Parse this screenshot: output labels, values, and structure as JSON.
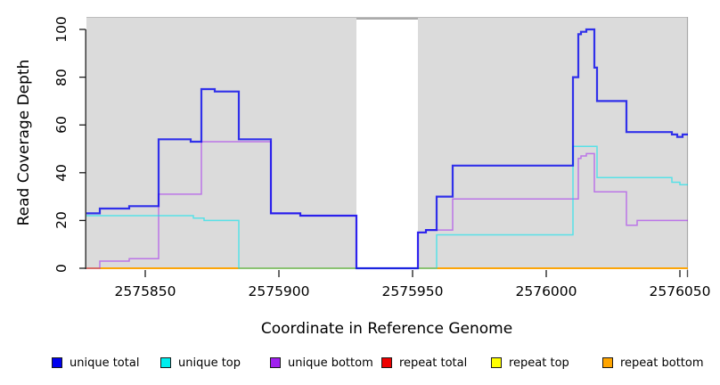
{
  "chart_data": {
    "type": "line",
    "subtype": "step-coverage",
    "title": "",
    "xlabel": "Coordinate in Reference Genome",
    "ylabel": "Read Coverage Depth",
    "xlim": [
      2575828,
      2576053
    ],
    "ylim": [
      0,
      100
    ],
    "x_ticks": [
      2575850,
      2575900,
      2575950,
      2576000,
      2576050
    ],
    "y_ticks": [
      0,
      20,
      40,
      60,
      80,
      100
    ],
    "grid": false,
    "legend_position": "bottom",
    "plot_bg": "#dbdbdb",
    "gap_region": {
      "x_start": 2575929,
      "x_end": 2575952,
      "color": "#ffffff",
      "top_border": "#8f8f8f"
    },
    "draw_order": [
      3,
      4,
      5,
      2,
      1,
      0
    ],
    "series": [
      {
        "name": "unique total",
        "swatch_color": "#0000ee",
        "line_color": "#0000ee",
        "line_alpha": 0.78,
        "line_width": 2.2,
        "steps": [
          [
            2575828,
            23
          ],
          [
            2575833,
            25
          ],
          [
            2575844,
            26
          ],
          [
            2575855,
            54
          ],
          [
            2575867,
            53
          ],
          [
            2575871,
            75
          ],
          [
            2575876,
            74
          ],
          [
            2575885,
            54
          ],
          [
            2575897,
            23
          ],
          [
            2575908,
            22
          ],
          [
            2575929,
            0
          ],
          [
            2575952,
            15
          ],
          [
            2575955,
            16
          ],
          [
            2575959,
            30
          ],
          [
            2575965,
            43
          ],
          [
            2576010,
            80
          ],
          [
            2576012,
            98
          ],
          [
            2576013,
            99
          ],
          [
            2576015,
            100
          ],
          [
            2576018,
            84
          ],
          [
            2576019,
            70
          ],
          [
            2576030,
            57
          ],
          [
            2576047,
            56
          ],
          [
            2576049,
            55
          ],
          [
            2576051,
            56
          ],
          [
            2576053,
            56
          ]
        ]
      },
      {
        "name": "unique top",
        "swatch_color": "#00eeee",
        "line_color": "#00e5ee",
        "line_alpha": 0.6,
        "line_width": 1.5,
        "steps": [
          [
            2575828,
            22
          ],
          [
            2575868,
            21
          ],
          [
            2575872,
            20
          ],
          [
            2575885,
            0
          ],
          [
            2575959,
            14
          ],
          [
            2576010,
            51
          ],
          [
            2576019,
            38
          ],
          [
            2576047,
            36
          ],
          [
            2576050,
            35
          ],
          [
            2576053,
            35
          ]
        ]
      },
      {
        "name": "unique bottom",
        "swatch_color": "#a020f0",
        "line_color": "#a020f0",
        "line_alpha": 0.55,
        "line_width": 1.5,
        "steps": [
          [
            2575828,
            0
          ],
          [
            2575833,
            3
          ],
          [
            2575844,
            4
          ],
          [
            2575855,
            31
          ],
          [
            2575871,
            53
          ],
          [
            2575897,
            23
          ],
          [
            2575908,
            22
          ],
          [
            2575929,
            0
          ],
          [
            2575952,
            15
          ],
          [
            2575955,
            16
          ],
          [
            2575965,
            29
          ],
          [
            2576012,
            46
          ],
          [
            2576013,
            47
          ],
          [
            2576015,
            48
          ],
          [
            2576018,
            32
          ],
          [
            2576030,
            18
          ],
          [
            2576034,
            20
          ],
          [
            2576053,
            20
          ]
        ]
      },
      {
        "name": "repeat total",
        "swatch_color": "#ee0000",
        "line_color": "#ee0000",
        "line_alpha": 1,
        "line_width": 1.4,
        "steps": [
          [
            2575828,
            0
          ],
          [
            2576053,
            0
          ]
        ]
      },
      {
        "name": "repeat top",
        "swatch_color": "#ffff00",
        "line_color": "#f0e020",
        "line_alpha": 1,
        "line_width": 1.4,
        "steps": [
          [
            2575828,
            0
          ],
          [
            2576053,
            0
          ]
        ]
      },
      {
        "name": "repeat bottom",
        "swatch_color": "#ffa500",
        "line_color": "#ffa500",
        "line_alpha": 1,
        "line_width": 1.7,
        "steps": [
          [
            2575828,
            0
          ],
          [
            2576053,
            0
          ]
        ]
      }
    ]
  }
}
